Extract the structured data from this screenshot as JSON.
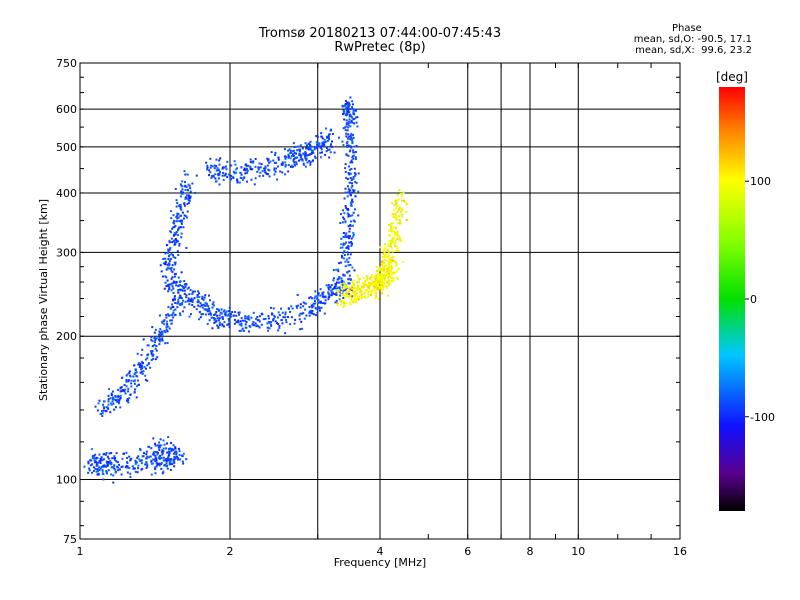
{
  "header": {
    "title": "Tromsø 20180213 07:44:00-07:45:43",
    "subtitle": "RwPretec (8p)"
  },
  "phase_info": {
    "heading": "Phase",
    "line_o": "mean, sd,O: -90.5, 17.1",
    "line_x": "mean, sd,X:  99.6, 23.2"
  },
  "colorbar": {
    "unit_label": "[deg]",
    "tick_labels": [
      "100",
      "0",
      "-100"
    ],
    "ticks": [
      100,
      0,
      -100
    ],
    "range": [
      -180,
      180
    ]
  },
  "chart_data": {
    "type": "scatter",
    "title": "Tromsø 20180213 07:44:00-07:45:43",
    "subtitle": "RwPretec (8p)",
    "xlabel": "Frequency [MHz]",
    "ylabel": "Stationary phase Virtual Height [km]",
    "xscale": "log",
    "yscale": "log",
    "xlim": [
      1,
      16
    ],
    "ylim": [
      75,
      750
    ],
    "xticks": [
      1,
      2,
      4,
      6,
      8,
      10,
      16
    ],
    "xtick_labels": [
      "1",
      "2",
      "4",
      "6",
      "8",
      "10",
      "16"
    ],
    "yticks": [
      75,
      100,
      200,
      300,
      400,
      500,
      600,
      750
    ],
    "ytick_labels": [
      "75",
      "100",
      "200",
      "300",
      "400",
      "500",
      "600",
      "750"
    ],
    "x_gridlines": [
      1,
      2,
      3,
      4,
      6,
      7,
      8,
      10
    ],
    "y_gridlines": [
      100,
      200,
      300,
      400,
      500,
      600
    ],
    "grid": true,
    "color_scale": "phase [deg]",
    "series": [
      {
        "trace": "O-mode",
        "phase_mean": -90.5,
        "phase_sd": 17.1,
        "segments": [
          {
            "f": [
              1.05,
              1.1,
              1.2,
              1.35,
              1.5
            ],
            "h": [
              108,
              108,
              107,
              109,
              107
            ]
          },
          {
            "f": [
              1.1,
              1.2,
              1.3,
              1.4,
              1.5,
              1.6
            ],
            "h": [
              140,
              150,
              165,
              190,
              215,
              240
            ]
          },
          {
            "f": [
              1.5,
              1.6,
              1.75,
              1.9,
              2.1,
              2.4,
              2.8,
              3.1,
              3.3,
              3.45
            ],
            "h": [
              270,
              250,
              230,
              220,
              215,
              215,
              225,
              240,
              255,
              260
            ]
          },
          {
            "f": [
              3.4,
              3.45,
              3.5,
              3.5,
              3.48,
              3.45
            ],
            "h": [
              280,
              330,
              400,
              500,
              580,
              620
            ]
          },
          {
            "f": [
              1.5,
              1.55,
              1.6,
              1.65
            ],
            "h": [
              280,
              320,
              370,
              430
            ]
          },
          {
            "f": [
              1.8,
              2.0,
              2.3,
              2.6,
              2.8,
              3.0,
              3.2
            ],
            "h": [
              450,
              440,
              450,
              470,
              480,
              500,
              520
            ]
          },
          {
            "f": [
              1.4,
              1.5,
              1.6
            ],
            "h": [
              115,
              113,
              112
            ]
          }
        ]
      },
      {
        "trace": "X-mode",
        "phase_mean": 99.6,
        "phase_sd": 23.2,
        "segments": [
          {
            "f": [
              3.3,
              3.5,
              3.7,
              3.9,
              4.1,
              4.3
            ],
            "h": [
              245,
              248,
              252,
              258,
              265,
              280
            ]
          },
          {
            "f": [
              3.9,
              4.05,
              4.2,
              4.3,
              4.4
            ],
            "h": [
              250,
              270,
              300,
              340,
              390
            ]
          }
        ]
      }
    ]
  }
}
